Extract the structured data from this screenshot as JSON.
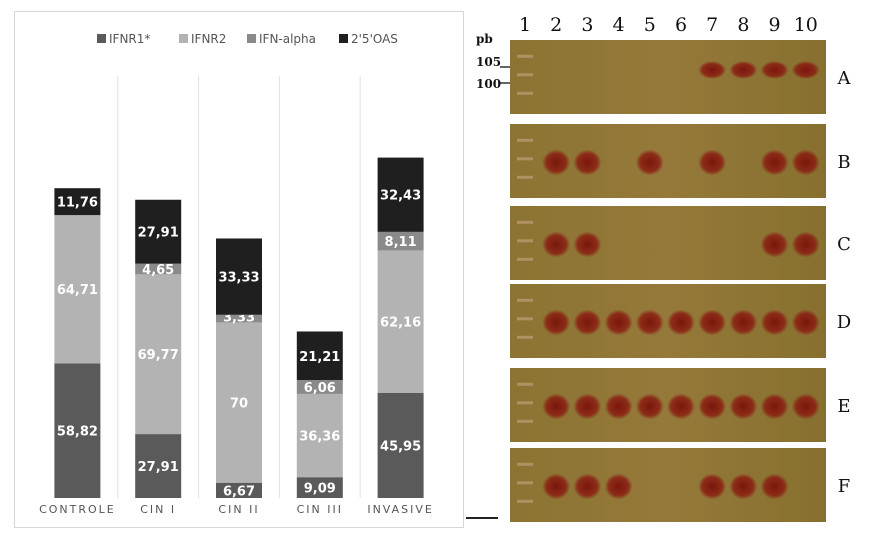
{
  "chart_data": {
    "type": "bar",
    "stacked": true,
    "categories": [
      "CONTROLE",
      "CIN I",
      "CIN II",
      "CIN III",
      "INVASIVE"
    ],
    "series": [
      {
        "name": "IFNR1*",
        "color": "#5a5a5a",
        "values": [
          58.82,
          27.91,
          6.67,
          9.09,
          45.95
        ],
        "labels": [
          "58,82",
          "27,91",
          "6,67",
          "9,09",
          "45,95"
        ]
      },
      {
        "name": "IFNR2",
        "color": "#b3b3b3",
        "values": [
          64.71,
          69.77,
          70,
          36.36,
          62.16
        ],
        "labels": [
          "64,71",
          "69,77",
          "70",
          "36,36",
          "62,16"
        ]
      },
      {
        "name": "IFN-alpha",
        "color": "#8a8a8a",
        "values": [
          0,
          4.65,
          3.33,
          6.06,
          8.11
        ],
        "labels": [
          "0",
          "4,65",
          "3,33",
          "6,06",
          "8,11"
        ]
      },
      {
        "name": "2'5'OAS",
        "color": "#1f1f1f",
        "values": [
          11.76,
          27.91,
          33.33,
          21.21,
          32.43
        ],
        "labels": [
          "11,76",
          "27,91",
          "33,33",
          "21,21",
          "32,43"
        ]
      }
    ],
    "legend": "top-center",
    "grid": false
  },
  "gel": {
    "unit_label": "pb",
    "markers": [
      "105",
      "100"
    ],
    "lanes": [
      "1",
      "2",
      "3",
      "4",
      "5",
      "6",
      "7",
      "8",
      "9",
      "10"
    ],
    "rows": [
      {
        "letter": "A",
        "bands": [
          false,
          false,
          false,
          false,
          false,
          false,
          true,
          true,
          true,
          true
        ]
      },
      {
        "letter": "B",
        "bands": [
          false,
          true,
          true,
          false,
          true,
          false,
          true,
          false,
          true,
          true
        ]
      },
      {
        "letter": "C",
        "bands": [
          false,
          true,
          true,
          false,
          false,
          false,
          false,
          false,
          true,
          true
        ]
      },
      {
        "letter": "D",
        "bands": [
          false,
          true,
          true,
          true,
          true,
          true,
          true,
          true,
          true,
          true
        ]
      },
      {
        "letter": "E",
        "bands": [
          false,
          true,
          true,
          true,
          true,
          true,
          true,
          true,
          true,
          true
        ]
      },
      {
        "letter": "F",
        "bands": [
          false,
          true,
          true,
          true,
          false,
          false,
          true,
          true,
          true,
          false
        ]
      }
    ]
  },
  "colors": {
    "gel_background": "#8a7430",
    "gel_band": "#8a1f12",
    "marker_band": "#d0a887"
  }
}
